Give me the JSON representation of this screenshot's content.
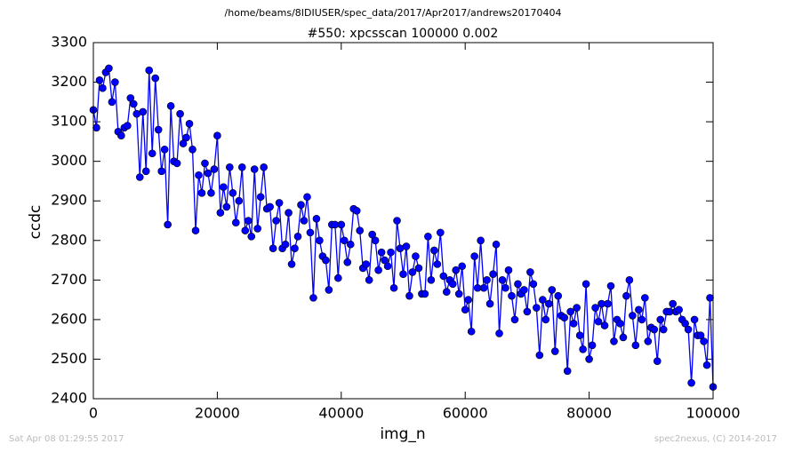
{
  "chart_data": {
    "type": "line",
    "suptitle": "/home/beams/8IDIUSER/spec_data/2017/Apr2017/andrews20170404",
    "title": "#550: xpcsscan 100000 0.002",
    "xlabel": "img_n",
    "ylabel": "ccdc",
    "footer_left": "Sat Apr 08 01:29:55 2017",
    "footer_right": "spec2nexus, (C) 2014-2017",
    "xlim": [
      0,
      100000
    ],
    "ylim": [
      2400,
      3300
    ],
    "xticks": [
      0,
      20000,
      40000,
      60000,
      80000,
      100000
    ],
    "yticks": [
      2400,
      2500,
      2600,
      2700,
      2800,
      2900,
      3000,
      3100,
      3200,
      3300
    ],
    "x": [
      0,
      500,
      1000,
      1500,
      2000,
      2500,
      3000,
      3500,
      4000,
      4500,
      5000,
      5500,
      6000,
      6500,
      7000,
      7500,
      8000,
      8500,
      9000,
      9500,
      10000,
      10500,
      11000,
      11500,
      12000,
      12500,
      13000,
      13500,
      14000,
      14500,
      15000,
      15500,
      16000,
      16500,
      17000,
      17500,
      18000,
      18500,
      19000,
      19500,
      20000,
      20500,
      21000,
      21500,
      22000,
      22500,
      23000,
      23500,
      24000,
      24500,
      25000,
      25500,
      26000,
      26500,
      27000,
      27500,
      28000,
      28500,
      29000,
      29500,
      30000,
      30500,
      31000,
      31500,
      32000,
      32500,
      33000,
      33500,
      34000,
      34500,
      35000,
      35500,
      36000,
      36500,
      37000,
      37500,
      38000,
      38500,
      39000,
      39500,
      40000,
      40500,
      41000,
      41500,
      42000,
      42500,
      43000,
      43500,
      44000,
      44500,
      45000,
      45500,
      46000,
      46500,
      47000,
      47500,
      48000,
      48500,
      49000,
      49500,
      50000,
      50500,
      51000,
      51500,
      52000,
      52500,
      53000,
      53500,
      54000,
      54500,
      55000,
      55500,
      56000,
      56500,
      57000,
      57500,
      58000,
      58500,
      59000,
      59500,
      60000,
      60500,
      61000,
      61500,
      62000,
      62500,
      63000,
      63500,
      64000,
      64500,
      65000,
      65500,
      66000,
      66500,
      67000,
      67500,
      68000,
      68500,
      69000,
      69500,
      70000,
      70500,
      71000,
      71500,
      72000,
      72500,
      73000,
      73500,
      74000,
      74500,
      75000,
      75500,
      76000,
      76500,
      77000,
      77500,
      78000,
      78500,
      79000,
      79500,
      80000,
      80500,
      81000,
      81500,
      82000,
      82500,
      83000,
      83500,
      84000,
      84500,
      85000,
      85500,
      86000,
      86500,
      87000,
      87500,
      88000,
      88500,
      89000,
      89500,
      90000,
      90500,
      91000,
      91500,
      92000,
      92500,
      93000,
      93500,
      94000,
      94500,
      95000,
      95500,
      96000,
      96500,
      97000,
      97500,
      98000,
      98500,
      99000,
      99500,
      100000
    ],
    "series": [
      {
        "color": "#0000ff",
        "values": [
          3130,
          3085,
          3205,
          3185,
          3225,
          3235,
          3150,
          3200,
          3075,
          3065,
          3085,
          3090,
          3160,
          3145,
          3120,
          2960,
          3125,
          2975,
          3230,
          3020,
          3210,
          3080,
          2975,
          3030,
          2840,
          3140,
          3000,
          2995,
          3120,
          3045,
          3060,
          3095,
          3030,
          2825,
          2965,
          2920,
          2995,
          2970,
          2920,
          2980,
          3065,
          2870,
          2935,
          2885,
          2985,
          2920,
          2845,
          2900,
          2985,
          2825,
          2850,
          2810,
          2980,
          2830,
          2910,
          2985,
          2880,
          2885,
          2780,
          2850,
          2895,
          2780,
          2790,
          2870,
          2740,
          2780,
          2810,
          2890,
          2850,
          2910,
          2820,
          2655,
          2855,
          2800,
          2760,
          2750,
          2675,
          2840,
          2840,
          2705,
          2840,
          2800,
          2745,
          2790,
          2880,
          2875,
          2825,
          2730,
          2740,
          2700,
          2815,
          2800,
          2725,
          2770,
          2750,
          2735,
          2770,
          2680,
          2850,
          2780,
          2715,
          2785,
          2660,
          2720,
          2760,
          2730,
          2665,
          2665,
          2810,
          2700,
          2775,
          2740,
          2820,
          2710,
          2670,
          2700,
          2690,
          2725,
          2665,
          2735,
          2625,
          2650,
          2570,
          2760,
          2680,
          2800,
          2680,
          2700,
          2640,
          2715,
          2790,
          2565,
          2700,
          2680,
          2725,
          2660,
          2600,
          2690,
          2665,
          2675,
          2620,
          2720,
          2690,
          2630,
          2510,
          2650,
          2600,
          2640,
          2675,
          2520,
          2660,
          2610,
          2605,
          2470,
          2620,
          2590,
          2630,
          2560,
          2525,
          2690,
          2500,
          2535,
          2630,
          2595,
          2640,
          2585,
          2640,
          2685,
          2545,
          2600,
          2590,
          2555,
          2660,
          2700,
          2610,
          2535,
          2625,
          2600,
          2655,
          2545,
          2580,
          2575,
          2495,
          2600,
          2575,
          2620,
          2620,
          2640,
          2620,
          2625,
          2600,
          2590,
          2575,
          2440,
          2600,
          2560,
          2560,
          2545,
          2485,
          2655,
          2430
        ]
      }
    ]
  }
}
